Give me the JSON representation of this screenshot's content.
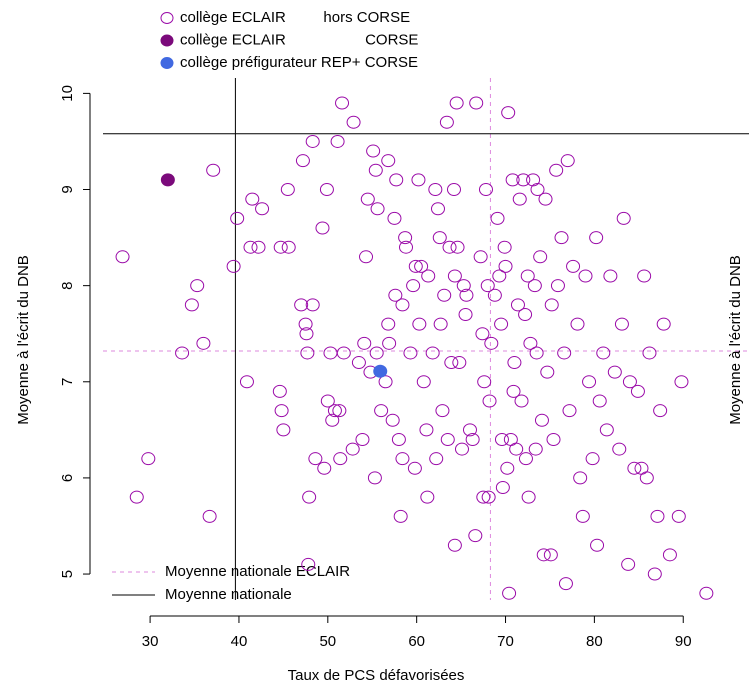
{
  "chart_data": {
    "type": "scatter",
    "xlabel": "Taux de PCS défavorisées",
    "ylabel": "Moyenne à l'écrit du DNB",
    "xlim": [
      24.7,
      97.4
    ],
    "ylim": [
      4.73,
      10.16
    ],
    "xticks": [
      30,
      40,
      50,
      60,
      70,
      80,
      90
    ],
    "yticks": [
      5,
      6,
      7,
      8,
      9,
      10
    ],
    "series": [
      {
        "name": "collège ECLAIR         hors CORSE",
        "color": "#9a0aa8",
        "marker": "open",
        "x": [
          26.9,
          28.5,
          29.8,
          33.6,
          34.7,
          35.3,
          36.0,
          36.7,
          37.1,
          39.4,
          39.8,
          40.9,
          41.3,
          41.5,
          42.2,
          42.6,
          44.6,
          44.7,
          44.8,
          45.0,
          45.5,
          45.6,
          47.0,
          47.2,
          47.5,
          47.6,
          47.7,
          47.8,
          47.9,
          48.3,
          48.3,
          48.6,
          49.4,
          49.6,
          49.9,
          50.0,
          50.3,
          50.5,
          50.8,
          51.1,
          51.3,
          51.4,
          51.6,
          51.8,
          52.8,
          52.9,
          53.5,
          53.9,
          54.1,
          54.3,
          54.5,
          54.8,
          55.1,
          55.3,
          55.4,
          55.5,
          55.6,
          56.0,
          56.5,
          56.8,
          56.8,
          56.9,
          57.3,
          57.5,
          57.6,
          57.7,
          58.0,
          58.2,
          58.4,
          58.4,
          58.7,
          58.8,
          59.3,
          59.6,
          59.8,
          59.9,
          60.2,
          60.3,
          60.5,
          60.8,
          61.1,
          61.2,
          61.3,
          61.8,
          62.1,
          62.2,
          62.4,
          62.6,
          62.7,
          62.9,
          63.1,
          63.4,
          63.5,
          63.7,
          63.9,
          64.2,
          64.3,
          64.3,
          64.5,
          64.6,
          64.8,
          65.1,
          65.3,
          65.5,
          65.6,
          66.0,
          66.3,
          66.6,
          66.7,
          67.2,
          67.4,
          67.5,
          67.6,
          67.8,
          68.0,
          68.1,
          68.2,
          68.4,
          68.8,
          69.1,
          69.3,
          69.5,
          69.6,
          69.7,
          69.9,
          70.0,
          70.2,
          70.3,
          70.4,
          70.6,
          70.8,
          70.9,
          71.0,
          71.2,
          71.4,
          71.6,
          71.8,
          72.0,
          72.2,
          72.3,
          72.5,
          72.6,
          72.8,
          73.1,
          73.3,
          73.4,
          73.5,
          73.6,
          73.9,
          74.1,
          74.3,
          74.5,
          74.7,
          75.1,
          75.2,
          75.4,
          75.7,
          75.9,
          76.3,
          76.6,
          76.8,
          77.0,
          77.2,
          77.6,
          78.1,
          78.4,
          78.7,
          79.0,
          79.4,
          79.8,
          80.2,
          80.3,
          80.6,
          81.0,
          81.4,
          81.8,
          82.3,
          82.8,
          83.1,
          83.3,
          83.8,
          84.0,
          84.5,
          84.9,
          85.3,
          85.6,
          85.9,
          86.2,
          86.8,
          87.1,
          87.4,
          87.8,
          88.5,
          89.5,
          89.8,
          92.6
        ],
        "values": [
          8.3,
          5.8,
          6.2,
          7.3,
          7.8,
          8.0,
          7.4,
          5.6,
          9.2,
          8.2,
          8.7,
          7.0,
          8.4,
          8.9,
          8.4,
          8.8,
          6.9,
          8.4,
          6.7,
          6.5,
          9.0,
          8.4,
          7.8,
          9.3,
          7.6,
          7.5,
          7.3,
          5.1,
          5.8,
          7.8,
          9.5,
          6.2,
          8.6,
          6.1,
          9.0,
          6.8,
          7.3,
          6.6,
          6.7,
          9.5,
          6.7,
          6.2,
          9.9,
          7.3,
          6.3,
          9.7,
          7.2,
          6.4,
          7.4,
          8.3,
          8.9,
          7.1,
          9.4,
          6.0,
          9.2,
          7.3,
          8.8,
          6.7,
          7.0,
          9.3,
          7.6,
          7.4,
          6.6,
          8.7,
          7.9,
          9.1,
          6.4,
          5.6,
          7.8,
          6.2,
          8.5,
          8.4,
          7.3,
          8.0,
          6.1,
          8.2,
          9.1,
          7.6,
          8.2,
          7.0,
          6.5,
          5.8,
          8.1,
          7.3,
          9.0,
          6.2,
          8.8,
          8.5,
          7.6,
          6.7,
          7.9,
          9.7,
          6.4,
          8.4,
          7.2,
          9.0,
          5.3,
          8.1,
          9.9,
          8.4,
          7.2,
          6.3,
          8.0,
          7.7,
          7.9,
          6.5,
          6.4,
          5.4,
          9.9,
          8.3,
          7.5,
          5.8,
          7.0,
          9.0,
          8.0,
          5.8,
          6.8,
          7.4,
          7.9,
          8.7,
          8.1,
          7.6,
          6.4,
          5.9,
          8.4,
          8.2,
          6.1,
          9.8,
          4.8,
          6.4,
          9.1,
          6.9,
          7.2,
          6.3,
          7.8,
          8.9,
          6.8,
          9.1,
          7.7,
          6.2,
          8.1,
          5.8,
          7.4,
          9.1,
          8.0,
          6.3,
          7.3,
          9.0,
          8.3,
          6.6,
          5.2,
          8.9,
          7.1,
          5.2,
          7.8,
          6.4,
          9.2,
          8.0,
          8.5,
          7.3,
          4.9,
          9.3,
          6.7,
          8.2,
          7.6,
          6.0,
          5.6,
          8.1,
          7.0,
          6.2,
          8.5,
          5.3,
          6.8,
          7.3,
          6.5,
          8.1,
          7.1,
          6.3,
          7.6,
          8.7,
          5.1,
          7.0,
          6.1,
          6.9,
          6.1,
          8.1,
          6.0,
          7.3,
          5.0,
          5.6,
          6.7,
          7.6,
          5.2,
          5.6,
          7.0,
          4.8
        ]
      },
      {
        "name": "collège ECLAIR                   CORSE",
        "color": "#7b0a7b",
        "marker": "filled",
        "x": [
          32.0
        ],
        "values": [
          9.1
        ]
      },
      {
        "name": "collège préfigurateur REP+ CORSE",
        "color": "#4169e1",
        "marker": "filled",
        "x": [
          55.9
        ],
        "values": [
          7.11
        ]
      }
    ],
    "reference_lines": [
      {
        "name": "Moyenne nationale ECLAIR",
        "x": 68.3,
        "y": 7.32,
        "color": "#dd88dd",
        "style": "dashed"
      },
      {
        "name": "Moyenne nationale",
        "x": 39.6,
        "y": 9.58,
        "color": "#000000",
        "style": "solid"
      }
    ]
  }
}
